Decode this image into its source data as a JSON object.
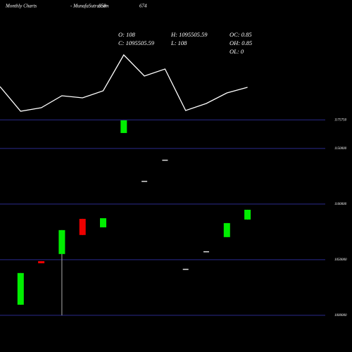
{
  "chart_data": {
    "type": "candlestick",
    "title": "Monthly Charts",
    "subtitle": "- MunafaSutra.com",
    "header_codes": [
      "858",
      "674"
    ],
    "info": [
      [
        "O: 108",
        "H: 1095505.59",
        "OC: 0.85"
      ],
      [
        "C: 1095505.59",
        "L: 108",
        "OH: 0.85"
      ],
      [
        "",
        "",
        "OL: 0"
      ]
    ],
    "open": [
      1009500,
      1048700,
      1055100,
      1086700,
      1079100,
      1163900,
      1120900,
      1139900,
      1041800,
      1057600,
      1070300,
      1086100
    ],
    "high": [
      1038000,
      1048700,
      1076600,
      1086700,
      1087300,
      1175300,
      1120900,
      1139900,
      1041800,
      1057600,
      1082900,
      1094900
    ],
    "low": [
      1009500,
      1046800,
      1000000,
      1072200,
      1079100,
      1163900,
      1120900,
      1139900,
      1041800,
      1057600,
      1070300,
      1086100
    ],
    "close": [
      1038000,
      1046800,
      1076600,
      1072200,
      1087300,
      1175300,
      1120900,
      1139900,
      1041800,
      1057600,
      1082900,
      1094900
    ],
    "up_color": "#00ee00",
    "down_color": "#ee0000",
    "ylim": [
      967000,
      1283500
    ],
    "yticks": [
      1000000,
      1050000,
      1100000,
      1150000,
      1175750
    ],
    "grid": true,
    "grid_color": "#2b2b8c",
    "overlay": {
      "color": "#ffffff",
      "values": [
        47,
        12,
        17,
        34,
        31,
        41,
        92,
        62,
        72,
        13,
        23,
        38,
        46
      ],
      "lim": [
        0,
        170
      ]
    }
  }
}
